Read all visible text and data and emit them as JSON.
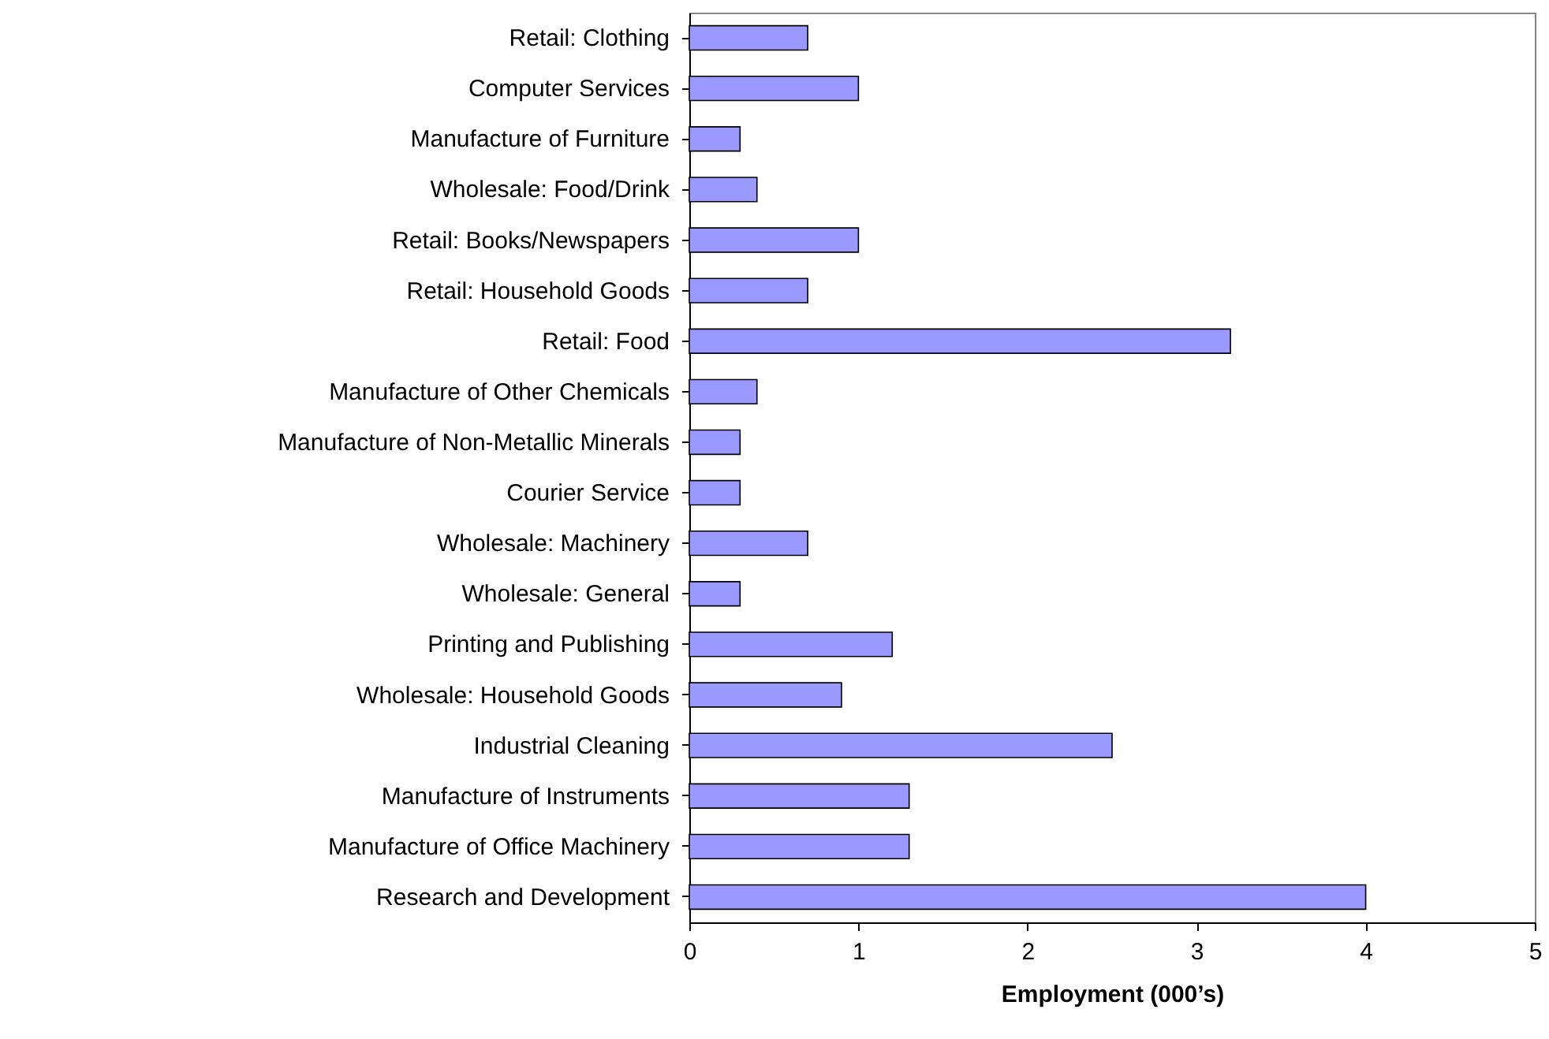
{
  "chart_data": {
    "type": "bar",
    "orientation": "horizontal",
    "xlabel": "Employment (000’s)",
    "categories": [
      "Retail: Clothing",
      "Computer Services",
      "Manufacture of Furniture",
      "Wholesale: Food/Drink",
      "Retail: Books/Newspapers",
      "Retail: Household Goods",
      "Retail: Food",
      "Manufacture of Other Chemicals",
      "Manufacture of Non-Metallic Minerals",
      "Courier Service",
      "Wholesale: Machinery",
      "Wholesale: General",
      "Printing and Publishing",
      "Wholesale: Household Goods",
      "Industrial Cleaning",
      "Manufacture of Instruments",
      "Manufacture of Office Machinery",
      "Research and Development"
    ],
    "values": [
      0.7,
      1.0,
      0.3,
      0.4,
      1.0,
      0.7,
      3.2,
      0.4,
      0.3,
      0.3,
      0.7,
      0.3,
      1.2,
      0.9,
      2.5,
      1.3,
      1.3,
      4.0
    ],
    "color": "#9999ff",
    "xlim": [
      0,
      5
    ],
    "xticks": [
      0,
      1,
      2,
      3,
      4,
      5
    ],
    "grid": false
  }
}
